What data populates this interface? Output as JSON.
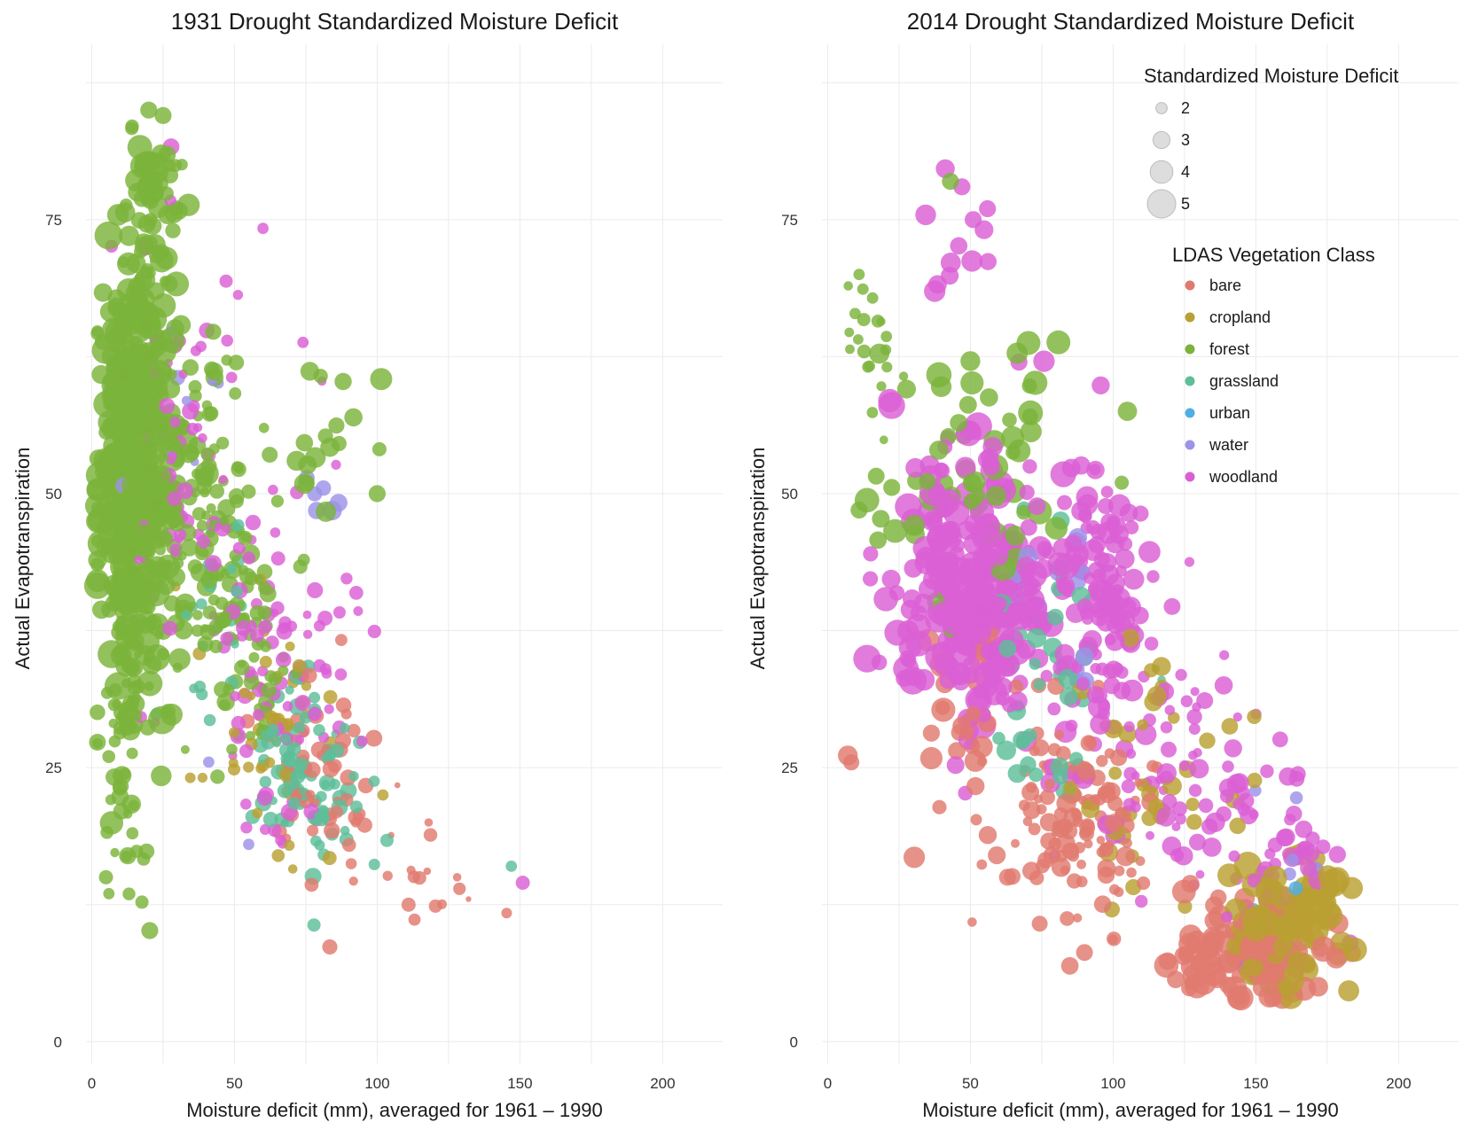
{
  "chart_data": [
    {
      "type": "scatter",
      "title": "1931 Drought Standardized Moisture Deficit",
      "xlabel": "Moisture deficit (mm), averaged for 1961 – 1990",
      "ylabel": "Actual Evapotranspiration",
      "xlim": [
        -2,
        221
      ],
      "ylim": [
        -2,
        91
      ],
      "xticks": [
        "0",
        "50",
        "100",
        "150",
        "200"
      ],
      "yticks": [
        "0",
        "25",
        "50",
        "75"
      ],
      "grid": true,
      "clusters": [
        {
          "cls": "forest",
          "cx": 15,
          "cy": 52,
          "sx": 7,
          "sy": 10,
          "n": 420,
          "s": [
            2,
            5
          ]
        },
        {
          "cls": "forest",
          "cx": 12,
          "cy": 30,
          "sx": 4,
          "sy": 8,
          "n": 60,
          "s": [
            1.5,
            3.5
          ]
        },
        {
          "cls": "forest",
          "cx": 22,
          "cy": 75,
          "sx": 6,
          "sy": 5,
          "n": 60,
          "s": [
            2,
            4.5
          ]
        },
        {
          "cls": "forest",
          "cx": 38,
          "cy": 48,
          "sx": 8,
          "sy": 8,
          "n": 110,
          "s": [
            1.5,
            3.5
          ]
        },
        {
          "cls": "forest",
          "cx": 55,
          "cy": 37,
          "sx": 8,
          "sy": 6,
          "n": 60,
          "s": [
            1.5,
            3
          ]
        },
        {
          "cls": "forest",
          "cx": 80,
          "cy": 55,
          "sx": 10,
          "sy": 4,
          "n": 18,
          "s": [
            2.5,
            4
          ]
        },
        {
          "cls": "woodland",
          "cx": 30,
          "cy": 55,
          "sx": 10,
          "sy": 8,
          "n": 60,
          "s": [
            1.5,
            3
          ]
        },
        {
          "cls": "woodland",
          "cx": 62,
          "cy": 33,
          "sx": 12,
          "sy": 7,
          "n": 80,
          "s": [
            1.5,
            3
          ]
        },
        {
          "cls": "woodland",
          "cx": 85,
          "cy": 45,
          "sx": 8,
          "sy": 10,
          "n": 15,
          "s": [
            1.5,
            2.5
          ]
        },
        {
          "cls": "grassland",
          "cx": 75,
          "cy": 24,
          "sx": 9,
          "sy": 4,
          "n": 90,
          "s": [
            1.5,
            3
          ]
        },
        {
          "cls": "grassland",
          "cx": 45,
          "cy": 38,
          "sx": 8,
          "sy": 5,
          "n": 25,
          "s": [
            1.5,
            2.5
          ]
        },
        {
          "cls": "cropland",
          "cx": 65,
          "cy": 28,
          "sx": 12,
          "sy": 6,
          "n": 50,
          "s": [
            1.5,
            2.5
          ]
        },
        {
          "cls": "bare",
          "cx": 80,
          "cy": 24,
          "sx": 10,
          "sy": 4,
          "n": 55,
          "s": [
            1.5,
            3
          ]
        },
        {
          "cls": "bare",
          "cx": 110,
          "cy": 16,
          "sx": 12,
          "sy": 3,
          "n": 14,
          "s": [
            1,
            2.5
          ]
        },
        {
          "cls": "water",
          "cx": 25,
          "cy": 60,
          "sx": 10,
          "sy": 6,
          "n": 12,
          "s": [
            1.5,
            3
          ]
        },
        {
          "cls": "water",
          "cx": 80,
          "cy": 52,
          "sx": 10,
          "sy": 4,
          "n": 6,
          "s": [
            2.5,
            3.5
          ]
        }
      ],
      "extra_points": [
        {
          "cls": "woodland",
          "x": 60,
          "y": 74.2,
          "s": 2
        },
        {
          "cls": "woodland",
          "x": 74,
          "y": 63.8,
          "s": 2
        },
        {
          "cls": "woodland",
          "x": 49,
          "y": 60.6,
          "s": 2
        },
        {
          "cls": "woodland",
          "x": 151,
          "y": 14.5,
          "s": 2.5
        },
        {
          "cls": "grassland",
          "x": 147,
          "y": 16,
          "s": 2
        },
        {
          "cls": "cropland",
          "x": 102,
          "y": 22.5,
          "s": 2
        },
        {
          "cls": "bare",
          "x": 118,
          "y": 20,
          "s": 1.5
        },
        {
          "cls": "bare",
          "x": 128,
          "y": 15,
          "s": 1.5
        },
        {
          "cls": "bare",
          "x": 132,
          "y": 13,
          "s": 1
        },
        {
          "cls": "bare",
          "x": 111,
          "y": 12.5,
          "s": 2.5
        },
        {
          "cls": "forest",
          "x": 100,
          "y": 50,
          "s": 3
        },
        {
          "cls": "forest",
          "x": 5,
          "y": 15,
          "s": 2.5
        },
        {
          "cls": "forest",
          "x": 6,
          "y": 13.5,
          "s": 2
        },
        {
          "cls": "forest",
          "x": 20,
          "y": 85,
          "s": 3
        },
        {
          "cls": "forest",
          "x": 25,
          "y": 84.5,
          "s": 3
        },
        {
          "cls": "water",
          "x": 55,
          "y": 18,
          "s": 2
        },
        {
          "cls": "water",
          "x": 41,
          "y": 25.5,
          "s": 2
        }
      ]
    },
    {
      "type": "scatter",
      "title": "2014 Drought Standardized Moisture Deficit",
      "xlabel": "Moisture deficit (mm), averaged for 1961 – 1990",
      "ylabel": "Actual Evapotranspiration",
      "xlim": [
        -2,
        221
      ],
      "ylim": [
        -2,
        91
      ],
      "xticks": [
        "0",
        "50",
        "100",
        "150",
        "200"
      ],
      "yticks": [
        "0",
        "25",
        "50",
        "75"
      ],
      "grid": true,
      "clusters": [
        {
          "cls": "woodland",
          "cx": 50,
          "cy": 42,
          "sx": 15,
          "sy": 6,
          "n": 260,
          "s": [
            2.5,
            5
          ]
        },
        {
          "cls": "woodland",
          "cx": 95,
          "cy": 42,
          "sx": 10,
          "sy": 7,
          "n": 120,
          "s": [
            2,
            4
          ]
        },
        {
          "cls": "woodland",
          "cx": 120,
          "cy": 25,
          "sx": 15,
          "sy": 6,
          "n": 80,
          "s": [
            1.5,
            3.5
          ]
        },
        {
          "cls": "woodland",
          "cx": 155,
          "cy": 17,
          "sx": 10,
          "sy": 4,
          "n": 40,
          "s": [
            2,
            3.5
          ]
        },
        {
          "cls": "woodland",
          "cx": 45,
          "cy": 72,
          "sx": 6,
          "sy": 5,
          "n": 10,
          "s": [
            3,
            4
          ]
        },
        {
          "cls": "forest",
          "cx": 15,
          "cy": 63,
          "sx": 5,
          "sy": 4,
          "n": 20,
          "s": [
            1.5,
            2.5
          ]
        },
        {
          "cls": "forest",
          "cx": 50,
          "cy": 52,
          "sx": 18,
          "sy": 6,
          "n": 60,
          "s": [
            2.5,
            4.5
          ]
        },
        {
          "cls": "bare",
          "cx": 90,
          "cy": 20,
          "sx": 15,
          "sy": 5,
          "n": 130,
          "s": [
            1.5,
            3.5
          ]
        },
        {
          "cls": "bare",
          "cx": 150,
          "cy": 8,
          "sx": 12,
          "sy": 2.5,
          "n": 110,
          "s": [
            2.5,
            4.5
          ]
        },
        {
          "cls": "bare",
          "cx": 45,
          "cy": 30,
          "sx": 12,
          "sy": 5,
          "n": 30,
          "s": [
            2.5,
            4.5
          ]
        },
        {
          "cls": "cropland",
          "cx": 162,
          "cy": 11,
          "sx": 10,
          "sy": 2.5,
          "n": 90,
          "s": [
            3,
            5
          ]
        },
        {
          "cls": "cropland",
          "cx": 110,
          "cy": 24,
          "sx": 15,
          "sy": 6,
          "n": 40,
          "s": [
            2,
            3.5
          ]
        },
        {
          "cls": "grassland",
          "cx": 75,
          "cy": 32,
          "sx": 12,
          "sy": 6,
          "n": 40,
          "s": [
            2,
            3.5
          ]
        },
        {
          "cls": "water",
          "cx": 80,
          "cy": 40,
          "sx": 12,
          "sy": 6,
          "n": 14,
          "s": [
            2.5,
            4
          ]
        },
        {
          "cls": "water",
          "cx": 160,
          "cy": 18,
          "sx": 6,
          "sy": 4,
          "n": 5,
          "s": [
            2,
            3
          ]
        }
      ],
      "extra_points": [
        {
          "cls": "forest",
          "x": 43,
          "y": 78.5,
          "s": 3
        },
        {
          "cls": "woodland",
          "x": 47,
          "y": 78,
          "s": 3
        },
        {
          "cls": "woodland",
          "x": 51,
          "y": 75,
          "s": 3
        },
        {
          "cls": "woodland",
          "x": 56,
          "y": 76,
          "s": 3
        },
        {
          "cls": "woodland",
          "x": 67,
          "y": 62,
          "s": 3
        },
        {
          "cls": "forest",
          "x": 11,
          "y": 70,
          "s": 2
        },
        {
          "cls": "forest",
          "x": 11,
          "y": 48.5,
          "s": 3
        },
        {
          "cls": "bare",
          "x": 63,
          "y": 15,
          "s": 3
        },
        {
          "cls": "urban",
          "x": 164,
          "y": 14,
          "s": 2.5
        },
        {
          "cls": "urban",
          "x": 149,
          "y": 12,
          "s": 2.5
        },
        {
          "cls": "grassland",
          "x": 115,
          "y": 34,
          "s": 1.5
        },
        {
          "cls": "grassland",
          "x": 117,
          "y": 33,
          "s": 1.5
        },
        {
          "cls": "forest",
          "x": 103,
          "y": 51,
          "s": 2.5
        },
        {
          "cls": "cropland",
          "x": 180,
          "y": 9,
          "s": 4
        },
        {
          "cls": "woodland",
          "x": 183,
          "y": 9,
          "s": 3
        }
      ]
    }
  ],
  "legend": {
    "size_title": "Standardized Moisture Deficit",
    "size_items": [
      {
        "label": "2",
        "value": 2
      },
      {
        "label": "3",
        "value": 3
      },
      {
        "label": "4",
        "value": 4
      },
      {
        "label": "5",
        "value": 5
      }
    ],
    "color_title": "LDAS Vegetation Class",
    "color_items": [
      {
        "label": "bare",
        "key": "bare",
        "color": "#E07A6F"
      },
      {
        "label": "cropland",
        "key": "cropland",
        "color": "#B9A032"
      },
      {
        "label": "forest",
        "key": "forest",
        "color": "#7BB33A"
      },
      {
        "label": "grassland",
        "key": "grassland",
        "color": "#5DBE98"
      },
      {
        "label": "urban",
        "key": "urban",
        "color": "#4FAEE3"
      },
      {
        "label": "water",
        "key": "water",
        "color": "#9C93E8"
      },
      {
        "label": "woodland",
        "key": "woodland",
        "color": "#DA5FD4"
      }
    ],
    "position": "top-right"
  }
}
